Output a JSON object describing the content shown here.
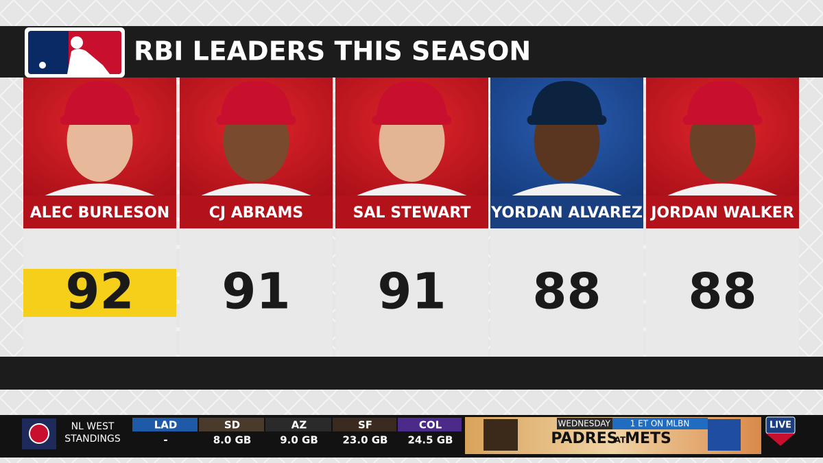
{
  "header": {
    "title": "RBI LEADERS THIS SEASON"
  },
  "players": [
    {
      "name": "ALEC BURLESON",
      "rbi": 92
    },
    {
      "name": "CJ ABRAMS",
      "rbi": 91
    },
    {
      "name": "SAL STEWART",
      "rbi": 91
    },
    {
      "name": "YORDAN ALVAREZ",
      "rbi": 88
    },
    {
      "name": "JORDAN WALKER",
      "rbi": 88
    }
  ],
  "ticker": {
    "label": [
      "NL WEST",
      "STANDINGS"
    ],
    "teams": [
      {
        "abbr": "LAD",
        "gb": "-"
      },
      {
        "abbr": "SD",
        "gb": "8.0 GB"
      },
      {
        "abbr": "AZ",
        "gb": "9.0 GB"
      },
      {
        "abbr": "SF",
        "gb": "23.0 GB"
      },
      {
        "abbr": "COL",
        "gb": "24.5 GB"
      }
    ],
    "promo": {
      "day": "WEDNESDAY",
      "time": "1 ET ON MLBN",
      "home": "PADRES",
      "at": "AT",
      "away": "METS"
    },
    "live": "LIVE"
  }
}
